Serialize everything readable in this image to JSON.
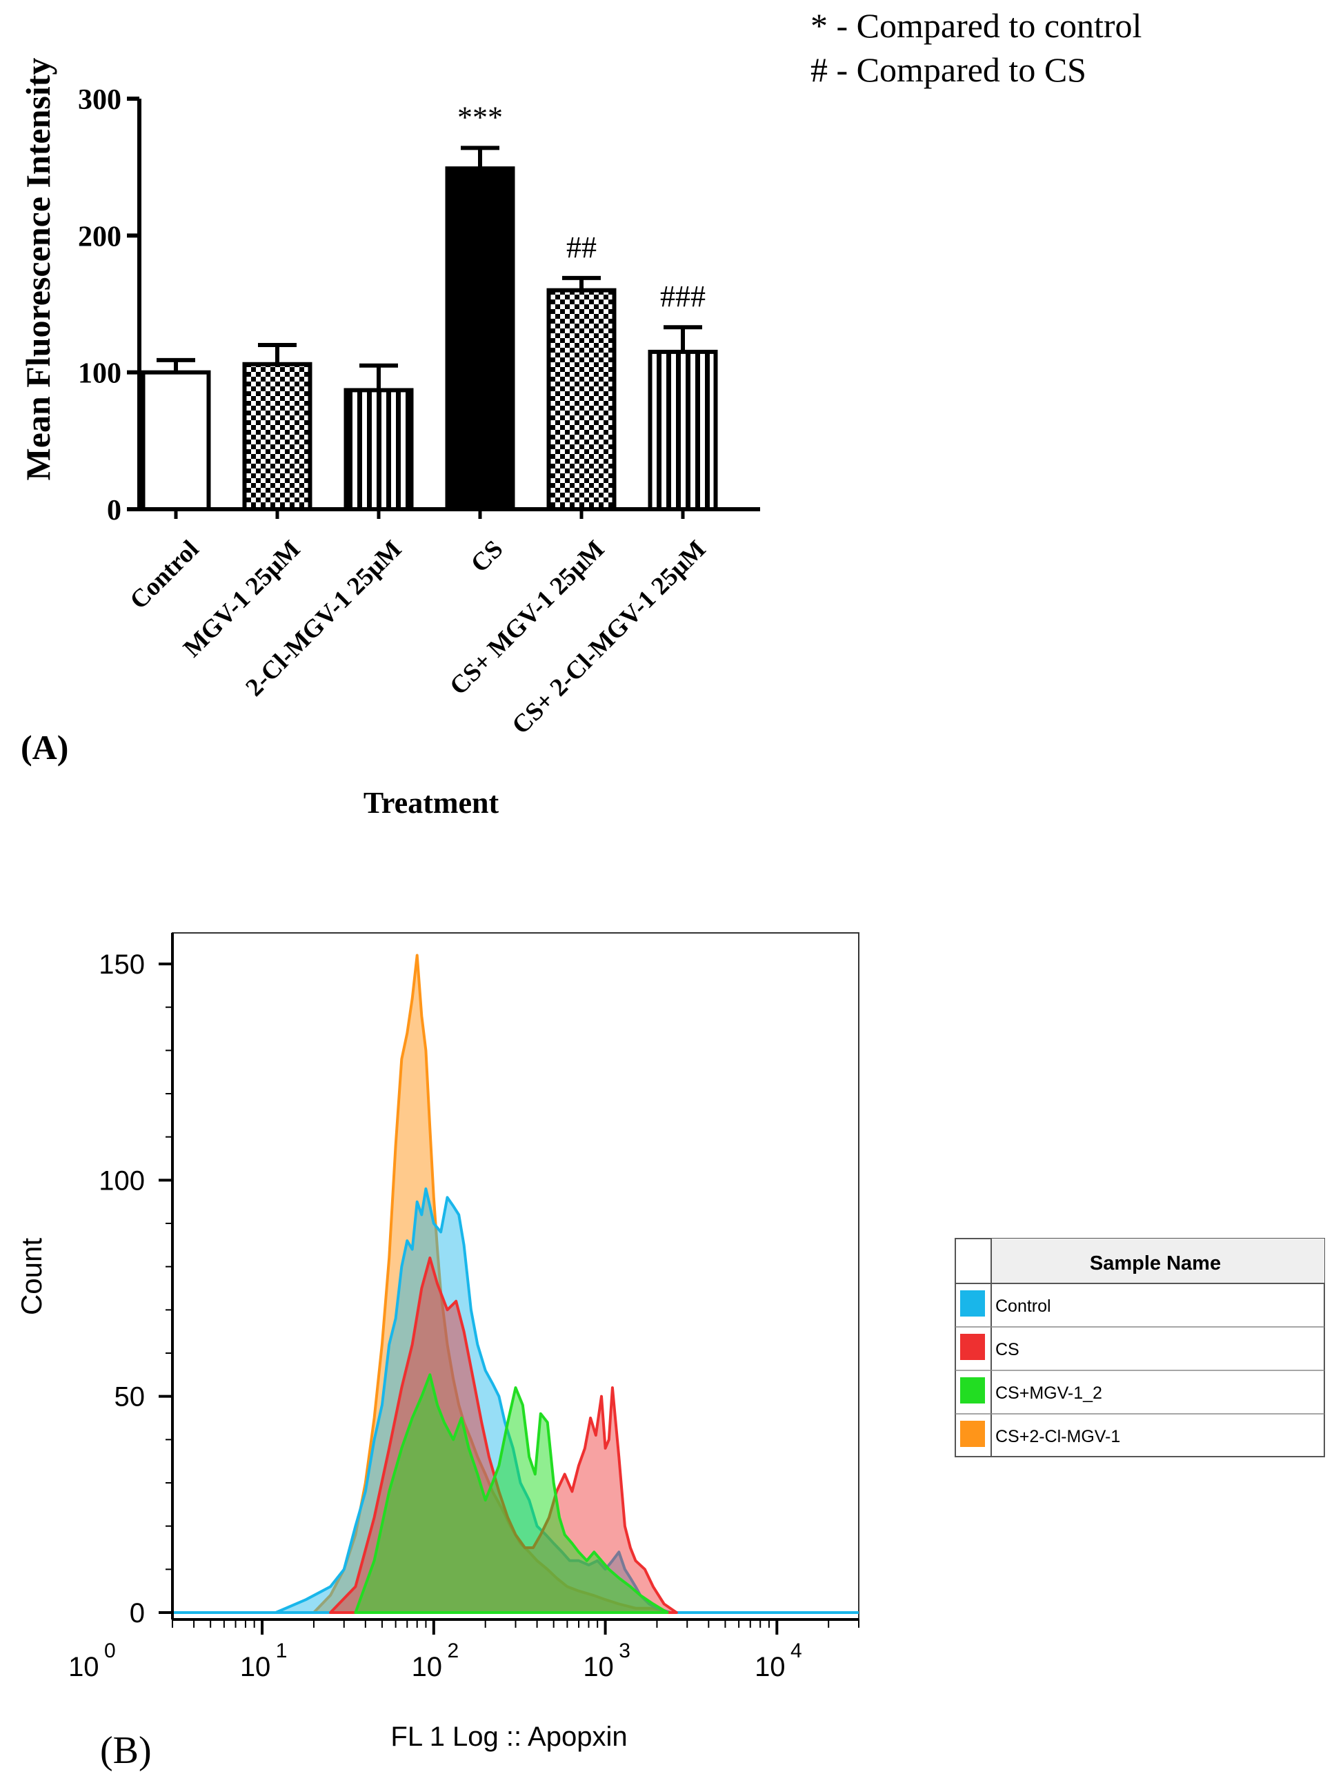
{
  "notes": [
    "* - Compared to control",
    "# - Compared to CS"
  ],
  "panel_a_label": "(A)",
  "panel_b_label": "(B)",
  "legend_b": {
    "header": "Sample Name",
    "items": [
      {
        "label": "Control",
        "color": "#19b6ea"
      },
      {
        "label": "CS",
        "color": "#ee3030"
      },
      {
        "label": "CS+MGV-1_2",
        "color": "#22dd22"
      },
      {
        "label": "CS+2-Cl-MGV-1",
        "color": "#ff9519"
      }
    ]
  },
  "chart_data": [
    {
      "type": "bar",
      "title": "",
      "xlabel": "Treatment",
      "ylabel": "Mean Fluorescence Intensity",
      "ylim": [
        0,
        300
      ],
      "yticks": [
        0,
        100,
        200,
        300
      ],
      "categories": [
        "Control",
        "MGV-1 25µM",
        "2-Cl-MGV-1 25µM",
        "CS",
        "CS+ MGV-1 25µM",
        "CS+ 2-Cl-MGV-1 25µM"
      ],
      "values": [
        100,
        106,
        87,
        249,
        160,
        115
      ],
      "errors": [
        9,
        14,
        18,
        15,
        9,
        18
      ],
      "fills": [
        "white",
        "checker",
        "vstripe",
        "black",
        "checker",
        "vstripe"
      ],
      "annotations": [
        "",
        "",
        "",
        "***",
        "##",
        "###"
      ]
    },
    {
      "type": "area",
      "title": "",
      "xlabel": "FL 1 Log :: Apopxin",
      "ylabel": "Count",
      "xscale": "log",
      "xlim": [
        3,
        30000
      ],
      "xticks": [
        1,
        10,
        100,
        1000,
        10000
      ],
      "xtick_base": "10",
      "xtick_exponents": [
        "0",
        "1",
        "2",
        "3",
        "4"
      ],
      "ylim": [
        0,
        155
      ],
      "yticks": [
        0,
        50,
        100,
        150
      ],
      "series": [
        {
          "name": "Control",
          "color": "#19b6ea",
          "x": [
            12,
            18,
            25,
            30,
            35,
            40,
            45,
            50,
            55,
            60,
            65,
            70,
            75,
            80,
            85,
            90,
            95,
            100,
            110,
            120,
            130,
            140,
            150,
            165,
            180,
            200,
            220,
            240,
            260,
            290,
            320,
            360,
            400,
            450,
            500,
            560,
            620,
            700,
            800,
            900,
            1000,
            1100,
            1200,
            1300,
            1400,
            1500,
            1600,
            1800,
            2000,
            2400
          ],
          "y": [
            0,
            3,
            6,
            10,
            20,
            28,
            40,
            48,
            62,
            68,
            80,
            86,
            84,
            95,
            92,
            98,
            94,
            90,
            88,
            96,
            94,
            92,
            85,
            70,
            62,
            56,
            53,
            50,
            44,
            38,
            30,
            26,
            20,
            18,
            16,
            14,
            12,
            12,
            11,
            12,
            10,
            12,
            14,
            10,
            8,
            6,
            4,
            2,
            1,
            0
          ]
        },
        {
          "name": "CS",
          "color": "#ee3030",
          "x": [
            25,
            35,
            45,
            55,
            65,
            75,
            85,
            95,
            105,
            120,
            135,
            150,
            170,
            190,
            210,
            240,
            270,
            300,
            340,
            380,
            420,
            470,
            520,
            580,
            640,
            700,
            760,
            820,
            880,
            950,
            1000,
            1050,
            1100,
            1200,
            1300,
            1400,
            1500,
            1700,
            1900,
            2200,
            2600
          ],
          "y": [
            0,
            6,
            22,
            38,
            52,
            62,
            75,
            82,
            76,
            70,
            72,
            65,
            54,
            44,
            36,
            28,
            22,
            18,
            15,
            15,
            18,
            22,
            28,
            32,
            28,
            34,
            38,
            45,
            41,
            50,
            38,
            40,
            52,
            36,
            20,
            15,
            12,
            10,
            6,
            2,
            0
          ]
        },
        {
          "name": "CS+MGV-1_2",
          "color": "#22dd22",
          "x": [
            35,
            45,
            55,
            65,
            75,
            85,
            95,
            105,
            115,
            130,
            145,
            160,
            180,
            200,
            220,
            240,
            270,
            300,
            330,
            360,
            390,
            420,
            460,
            500,
            540,
            580,
            640,
            700,
            780,
            860,
            950,
            1050,
            1200,
            1400,
            1600,
            1900,
            2300
          ],
          "y": [
            0,
            12,
            28,
            38,
            45,
            50,
            55,
            48,
            44,
            40,
            45,
            38,
            32,
            26,
            30,
            34,
            44,
            52,
            48,
            36,
            32,
            46,
            44,
            30,
            22,
            18,
            16,
            14,
            12,
            14,
            12,
            10,
            8,
            6,
            4,
            2,
            0
          ]
        },
        {
          "name": "CS+2-Cl-MGV-1",
          "color": "#ff9519",
          "x": [
            20,
            25,
            30,
            35,
            40,
            45,
            50,
            55,
            60,
            65,
            70,
            75,
            80,
            85,
            90,
            95,
            100,
            105,
            110,
            120,
            130,
            140,
            150,
            165,
            180,
            200,
            220,
            250,
            280,
            320,
            360,
            400,
            460,
            520,
            600,
            700,
            850,
            1000,
            1200,
            1500,
            1900,
            2400
          ],
          "y": [
            0,
            4,
            10,
            18,
            30,
            45,
            62,
            82,
            108,
            128,
            134,
            142,
            152,
            138,
            130,
            112,
            96,
            84,
            74,
            62,
            54,
            48,
            44,
            40,
            36,
            32,
            28,
            24,
            20,
            16,
            14,
            12,
            10,
            8,
            6,
            5,
            4,
            3,
            2,
            1,
            1,
            0
          ]
        }
      ]
    }
  ]
}
